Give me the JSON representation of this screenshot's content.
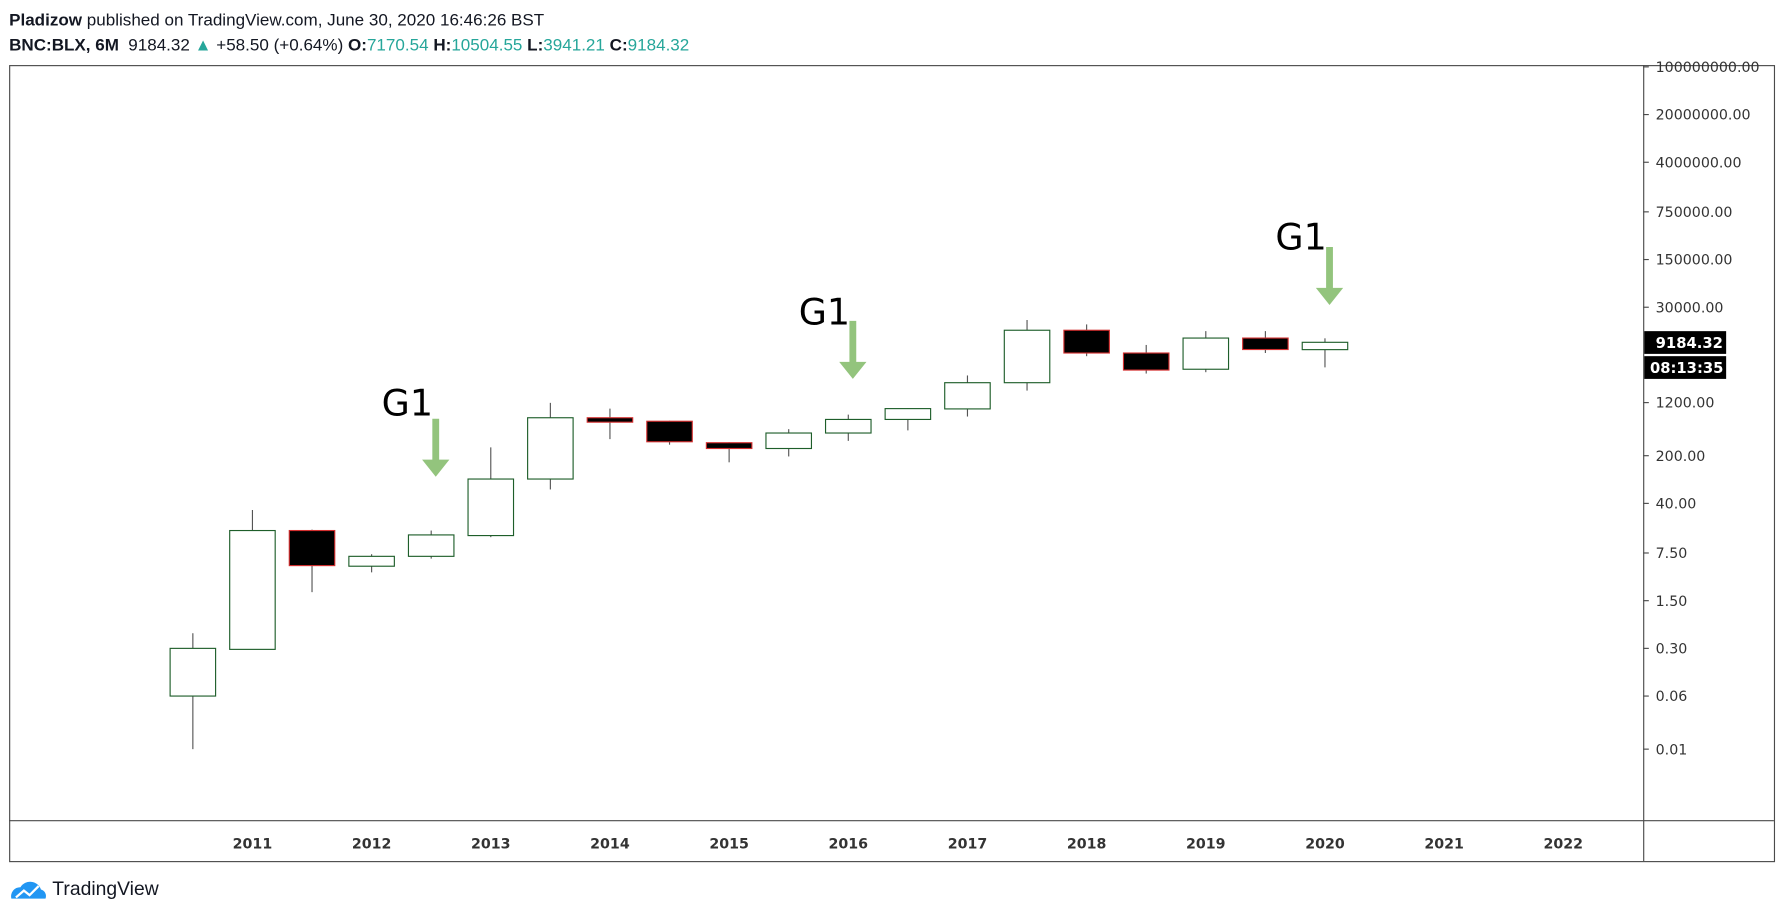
{
  "header": {
    "author": "Pladizow",
    "published_text": "published on TradingView.com, June 30, 2020 16:46:26 BST",
    "symbol": "BNC:BLX, 6M",
    "last": "9184.32",
    "change": "+58.50 (+0.64%)",
    "o_label": "O:",
    "o": "7170.54",
    "h_label": "H:",
    "h": "10504.55",
    "l_label": "L:",
    "l": "3941.21",
    "c_label": "C:",
    "c": "9184.32"
  },
  "price_label": "9184.32",
  "countdown": "08:13:35",
  "footer": {
    "brand": "TradingView"
  },
  "colors": {
    "up_border": "#1e5e2a",
    "down_border": "#d32f2f",
    "arrow": "#93c47d",
    "teal": "#26a69a"
  },
  "chart_data": {
    "type": "candlestick",
    "title": "BNC:BLX, 6M",
    "yscale": "log",
    "y_ticks": [
      "100000000.00",
      "20000000.00",
      "4000000.00",
      "750000.00",
      "150000.00",
      "30000.00",
      "1200.00",
      "200.00",
      "40.00",
      "7.50",
      "1.50",
      "0.30",
      "0.06",
      "0.01"
    ],
    "x_ticks": [
      "2011",
      "2012",
      "2013",
      "2014",
      "2015",
      "2016",
      "2017",
      "2018",
      "2019",
      "2020",
      "2021",
      "2022"
    ],
    "candles": [
      {
        "t": "2010-07",
        "o": 0.06,
        "h": 0.5,
        "l": 0.01,
        "c": 0.3
      },
      {
        "t": "2011-01",
        "o": 0.29,
        "h": 32,
        "l": 0.29,
        "c": 16
      },
      {
        "t": "2011-07",
        "o": 16,
        "h": 16.5,
        "l": 2.0,
        "c": 4.9
      },
      {
        "t": "2012-01",
        "o": 4.8,
        "h": 7.2,
        "l": 3.9,
        "c": 6.7
      },
      {
        "t": "2012-07",
        "o": 6.7,
        "h": 16,
        "l": 6.2,
        "c": 13.8
      },
      {
        "t": "2013-01",
        "o": 13.5,
        "h": 265,
        "l": 12.8,
        "c": 91
      },
      {
        "t": "2013-07",
        "o": 91,
        "h": 1190,
        "l": 64,
        "c": 720
      },
      {
        "t": "2014-01",
        "o": 720,
        "h": 980,
        "l": 350,
        "c": 620
      },
      {
        "t": "2014-07",
        "o": 640,
        "h": 650,
        "l": 290,
        "c": 320
      },
      {
        "t": "2015-01",
        "o": 310,
        "h": 315,
        "l": 160,
        "c": 255
      },
      {
        "t": "2015-07",
        "o": 255,
        "h": 490,
        "l": 195,
        "c": 430
      },
      {
        "t": "2016-01",
        "o": 430,
        "h": 800,
        "l": 330,
        "c": 680
      },
      {
        "t": "2016-07",
        "o": 680,
        "h": 990,
        "l": 470,
        "c": 980
      },
      {
        "t": "2017-01",
        "o": 970,
        "h": 3000,
        "l": 750,
        "c": 2350
      },
      {
        "t": "2017-07",
        "o": 2350,
        "h": 19500,
        "l": 1800,
        "c": 13800
      },
      {
        "t": "2018-01",
        "o": 13800,
        "h": 16800,
        "l": 5750,
        "c": 6400
      },
      {
        "t": "2018-07",
        "o": 6400,
        "h": 8400,
        "l": 3200,
        "c": 3600
      },
      {
        "t": "2019-01",
        "o": 3700,
        "h": 13400,
        "l": 3350,
        "c": 10600
      },
      {
        "t": "2019-07",
        "o": 10600,
        "h": 13400,
        "l": 6400,
        "c": 7200
      },
      {
        "t": "2020-01",
        "o": 7170.54,
        "h": 10504.55,
        "l": 3941.21,
        "c": 9184.32
      }
    ],
    "annotations": [
      {
        "text": "G1",
        "at": "2012-07",
        "type": "down-arrow"
      },
      {
        "text": "G1",
        "at": "2016-01",
        "type": "down-arrow"
      },
      {
        "text": "G1",
        "at": "2020-01",
        "type": "down-arrow"
      }
    ]
  }
}
